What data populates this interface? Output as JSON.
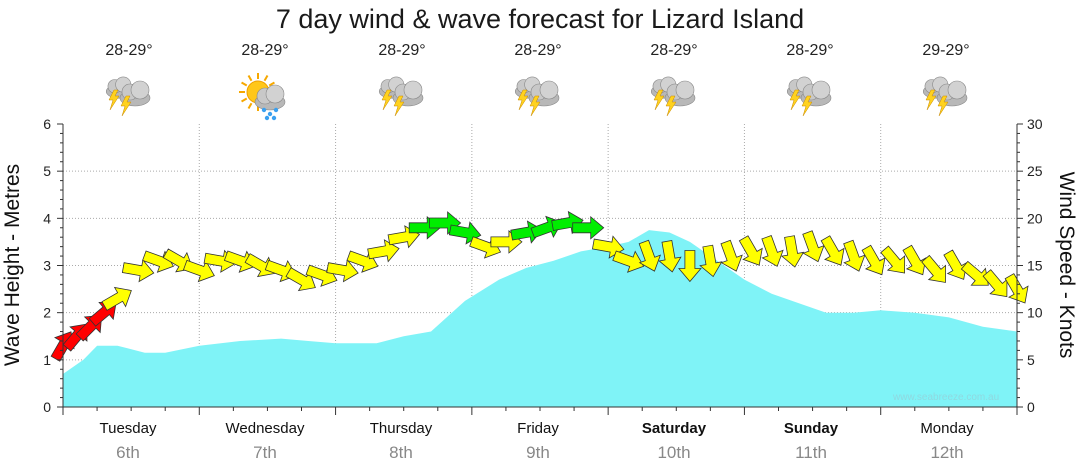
{
  "title": "7 day wind & wave forecast for Lizard Island",
  "credit": "www.seabreeze.com.au",
  "days": [
    {
      "name": "Tuesday",
      "date": "6th",
      "temp": "28-29°",
      "icon": "storm-cloud-icon",
      "bold": false
    },
    {
      "name": "Wednesday",
      "date": "7th",
      "temp": "28-29°",
      "icon": "sun-rain-cloud-icon",
      "bold": false
    },
    {
      "name": "Thursday",
      "date": "8th",
      "temp": "28-29°",
      "icon": "storm-cloud-icon",
      "bold": false
    },
    {
      "name": "Friday",
      "date": "9th",
      "temp": "28-29°",
      "icon": "storm-cloud-icon",
      "bold": false
    },
    {
      "name": "Saturday",
      "date": "10th",
      "temp": "28-29°",
      "icon": "storm-cloud-icon",
      "bold": true
    },
    {
      "name": "Sunday",
      "date": "11th",
      "temp": "28-29°",
      "icon": "storm-cloud-icon",
      "bold": true
    },
    {
      "name": "Monday",
      "date": "12th",
      "temp": "29-29°",
      "icon": "storm-cloud-icon",
      "bold": false
    }
  ],
  "colors": {
    "wave_fill": "#7ff3f7",
    "wind_light": "#ff0000",
    "wind_moderate": "#ffff00",
    "wind_strong": "#00ee00",
    "arrow_outline": "#333333"
  },
  "chart_data": {
    "type": "area",
    "title": "7 day wind & wave forecast for Lizard Island",
    "ylabel_left": "Wave Height - Metres",
    "ylabel_right": "Wind Speed - Knots",
    "ylim_left": [
      0,
      6
    ],
    "yticks_left": [
      "0",
      "1",
      "2",
      "3",
      "4",
      "5",
      "6"
    ],
    "ylim_right": [
      0,
      30
    ],
    "yticks_right": [
      "0",
      "5",
      "10",
      "15",
      "20",
      "25",
      "30"
    ],
    "x_unit": "days from start of Tuesday 6th",
    "xlim": [
      0,
      7
    ],
    "grid": true,
    "wave_height_m": [
      [
        0.0,
        0.7
      ],
      [
        0.15,
        1.0
      ],
      [
        0.25,
        1.3
      ],
      [
        0.4,
        1.3
      ],
      [
        0.6,
        1.15
      ],
      [
        0.75,
        1.15
      ],
      [
        1.0,
        1.3
      ],
      [
        1.3,
        1.4
      ],
      [
        1.6,
        1.45
      ],
      [
        1.8,
        1.4
      ],
      [
        2.0,
        1.35
      ],
      [
        2.3,
        1.35
      ],
      [
        2.5,
        1.5
      ],
      [
        2.7,
        1.6
      ],
      [
        2.95,
        2.25
      ],
      [
        3.2,
        2.7
      ],
      [
        3.4,
        2.95
      ],
      [
        3.6,
        3.1
      ],
      [
        3.8,
        3.3
      ],
      [
        4.0,
        3.4
      ],
      [
        4.15,
        3.5
      ],
      [
        4.3,
        3.75
      ],
      [
        4.45,
        3.7
      ],
      [
        4.6,
        3.5
      ],
      [
        4.8,
        3.1
      ],
      [
        5.0,
        2.7
      ],
      [
        5.2,
        2.4
      ],
      [
        5.4,
        2.2
      ],
      [
        5.6,
        2.0
      ],
      [
        5.8,
        2.0
      ],
      [
        6.0,
        2.05
      ],
      [
        6.25,
        2.0
      ],
      [
        6.5,
        1.9
      ],
      [
        6.75,
        1.7
      ],
      [
        7.0,
        1.6
      ]
    ],
    "wind_speed_kn": [
      [
        0.0,
        6.5
      ],
      [
        0.1,
        7.5
      ],
      [
        0.2,
        8.5
      ],
      [
        0.3,
        10.0
      ],
      [
        0.4,
        11.5
      ],
      [
        0.55,
        14.5
      ],
      [
        0.7,
        15.5
      ],
      [
        0.85,
        15.5
      ],
      [
        1.0,
        14.5
      ],
      [
        1.15,
        15.5
      ],
      [
        1.3,
        15.5
      ],
      [
        1.45,
        15.0
      ],
      [
        1.6,
        14.5
      ],
      [
        1.75,
        13.5
      ],
      [
        1.9,
        14.0
      ],
      [
        2.05,
        14.5
      ],
      [
        2.2,
        15.5
      ],
      [
        2.35,
        16.5
      ],
      [
        2.5,
        18.0
      ],
      [
        2.65,
        19.0
      ],
      [
        2.8,
        19.5
      ],
      [
        2.95,
        18.5
      ],
      [
        3.1,
        17.0
      ],
      [
        3.25,
        17.5
      ],
      [
        3.4,
        18.5
      ],
      [
        3.55,
        19.0
      ],
      [
        3.7,
        19.5
      ],
      [
        3.85,
        19.0
      ],
      [
        4.0,
        17.0
      ],
      [
        4.15,
        15.5
      ],
      [
        4.3,
        16.0
      ],
      [
        4.45,
        16.0
      ],
      [
        4.6,
        15.0
      ],
      [
        4.75,
        15.5
      ],
      [
        4.9,
        16.0
      ],
      [
        5.05,
        16.5
      ],
      [
        5.2,
        16.5
      ],
      [
        5.35,
        16.5
      ],
      [
        5.5,
        17.0
      ],
      [
        5.65,
        16.5
      ],
      [
        5.8,
        16.0
      ],
      [
        5.95,
        15.5
      ],
      [
        6.1,
        15.5
      ],
      [
        6.25,
        15.5
      ],
      [
        6.4,
        14.5
      ],
      [
        6.55,
        15.0
      ],
      [
        6.7,
        14.0
      ],
      [
        6.85,
        13.0
      ],
      [
        7.0,
        12.5
      ]
    ],
    "wind_direction_points_to_deg": [
      30,
      40,
      45,
      50,
      60,
      100,
      110,
      120,
      110,
      100,
      110,
      120,
      110,
      120,
      110,
      100,
      110,
      80,
      80,
      90,
      90,
      100,
      110,
      90,
      80,
      70,
      80,
      90,
      100,
      110,
      160,
      170,
      180,
      170,
      160,
      150,
      160,
      170,
      160,
      150,
      160,
      150,
      140,
      150,
      140,
      150,
      130,
      140,
      150
    ],
    "wind_categories": {
      "light": [
        0,
        11
      ],
      "moderate": [
        11,
        18.5
      ],
      "strong": [
        18.5,
        30
      ]
    },
    "series": [
      {
        "name": "Wave Height - Metres"
      },
      {
        "name": "Wind Speed - Knots"
      }
    ]
  }
}
